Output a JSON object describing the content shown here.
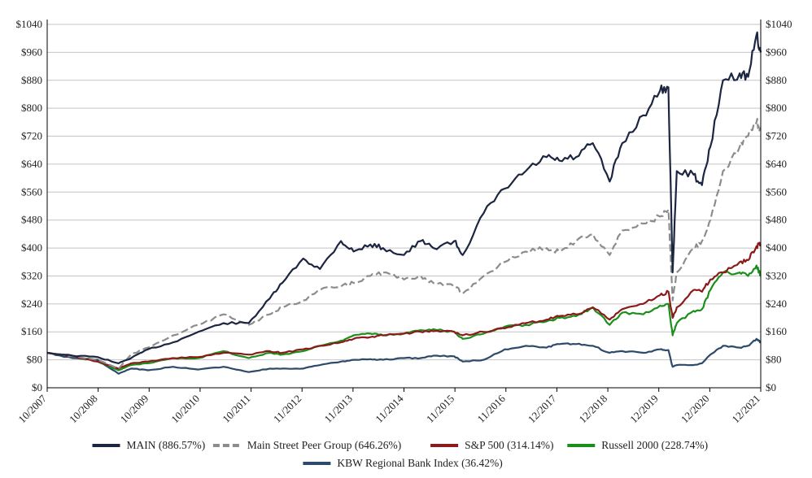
{
  "chart_data": {
    "type": "line",
    "y_axis": {
      "min": 0,
      "max": 1040,
      "step": 80,
      "prefix": "$",
      "right_axis_mirrored": true
    },
    "y_ticks": [
      "$0",
      "$80",
      "$160",
      "$240",
      "$320",
      "$400",
      "$480",
      "$560",
      "$640",
      "$720",
      "$800",
      "$880",
      "$960",
      "$1040"
    ],
    "x_ticks": [
      "10/2007",
      "10/2008",
      "10/2009",
      "10/2010",
      "10/2011",
      "11/2012",
      "11/2013",
      "11/2014",
      "11/2015",
      "11/2016",
      "12/2017",
      "12/2018",
      "12/2019",
      "12/2020",
      "12/2021"
    ],
    "x_range": [
      "2007-10",
      "2021-12"
    ],
    "grid": "horizontal",
    "legend_position": "bottom",
    "series": [
      {
        "name": "MAIN (886.57%)",
        "color": "#1c2541",
        "dash": "solid",
        "points": [
          [
            "2007-10",
            100
          ],
          [
            "2008-04",
            92
          ],
          [
            "2008-10",
            88
          ],
          [
            "2009-03",
            70
          ],
          [
            "2009-06",
            85
          ],
          [
            "2009-10",
            110
          ],
          [
            "2010-04",
            130
          ],
          [
            "2010-10",
            160
          ],
          [
            "2011-04",
            185
          ],
          [
            "2011-10",
            185
          ],
          [
            "2012-03",
            255
          ],
          [
            "2012-06",
            300
          ],
          [
            "2012-11",
            370
          ],
          [
            "2013-03",
            340
          ],
          [
            "2013-08",
            420
          ],
          [
            "2013-11",
            390
          ],
          [
            "2014-03",
            410
          ],
          [
            "2014-06",
            400
          ],
          [
            "2014-11",
            380
          ],
          [
            "2015-03",
            420
          ],
          [
            "2015-06",
            400
          ],
          [
            "2015-11",
            420
          ],
          [
            "2016-01",
            380
          ],
          [
            "2016-06",
            500
          ],
          [
            "2016-11",
            570
          ],
          [
            "2017-04",
            620
          ],
          [
            "2017-09",
            660
          ],
          [
            "2017-12",
            650
          ],
          [
            "2018-04",
            660
          ],
          [
            "2018-08",
            700
          ],
          [
            "2018-12",
            590
          ],
          [
            "2019-03",
            700
          ],
          [
            "2019-08",
            780
          ],
          [
            "2019-12",
            850
          ],
          [
            "2020-02",
            860
          ],
          [
            "2020-03",
            330
          ],
          [
            "2020-04",
            620
          ],
          [
            "2020-08",
            610
          ],
          [
            "2020-10",
            580
          ],
          [
            "2020-12",
            690
          ],
          [
            "2021-03",
            880
          ],
          [
            "2021-07",
            900
          ],
          [
            "2021-09",
            890
          ],
          [
            "2021-11",
            1010
          ],
          [
            "2021-12",
            960
          ]
        ]
      },
      {
        "name": "Main Street Peer Group (646.26%)",
        "color": "#8c8c8c",
        "dash": "dashed",
        "points": [
          [
            "2007-10",
            100
          ],
          [
            "2008-04",
            90
          ],
          [
            "2008-10",
            80
          ],
          [
            "2009-03",
            55
          ],
          [
            "2009-06",
            95
          ],
          [
            "2009-10",
            115
          ],
          [
            "2010-04",
            150
          ],
          [
            "2010-10",
            180
          ],
          [
            "2011-04",
            210
          ],
          [
            "2011-10",
            180
          ],
          [
            "2012-03",
            210
          ],
          [
            "2012-06",
            230
          ],
          [
            "2012-11",
            250
          ],
          [
            "2013-03",
            280
          ],
          [
            "2013-08",
            290
          ],
          [
            "2013-11",
            300
          ],
          [
            "2014-03",
            320
          ],
          [
            "2014-06",
            330
          ],
          [
            "2014-11",
            310
          ],
          [
            "2015-03",
            320
          ],
          [
            "2015-06",
            300
          ],
          [
            "2015-11",
            290
          ],
          [
            "2016-01",
            270
          ],
          [
            "2016-06",
            320
          ],
          [
            "2016-11",
            360
          ],
          [
            "2017-04",
            390
          ],
          [
            "2017-09",
            400
          ],
          [
            "2017-12",
            390
          ],
          [
            "2018-04",
            420
          ],
          [
            "2018-08",
            440
          ],
          [
            "2018-12",
            380
          ],
          [
            "2019-03",
            450
          ],
          [
            "2019-08",
            470
          ],
          [
            "2019-12",
            490
          ],
          [
            "2020-02",
            510
          ],
          [
            "2020-03",
            250
          ],
          [
            "2020-04",
            330
          ],
          [
            "2020-08",
            400
          ],
          [
            "2020-10",
            420
          ],
          [
            "2020-12",
            480
          ],
          [
            "2021-03",
            620
          ],
          [
            "2021-07",
            690
          ],
          [
            "2021-09",
            720
          ],
          [
            "2021-11",
            760
          ],
          [
            "2021-12",
            740
          ]
        ]
      },
      {
        "name": "S&P 500 (314.14%)",
        "color": "#8b1a1a",
        "dash": "solid",
        "points": [
          [
            "2007-10",
            100
          ],
          [
            "2008-04",
            90
          ],
          [
            "2008-10",
            75
          ],
          [
            "2009-03",
            55
          ],
          [
            "2009-06",
            70
          ],
          [
            "2009-10",
            75
          ],
          [
            "2010-04",
            85
          ],
          [
            "2010-10",
            88
          ],
          [
            "2011-04",
            100
          ],
          [
            "2011-10",
            95
          ],
          [
            "2012-03",
            105
          ],
          [
            "2012-06",
            100
          ],
          [
            "2012-11",
            110
          ],
          [
            "2013-03",
            120
          ],
          [
            "2013-08",
            130
          ],
          [
            "2013-11",
            140
          ],
          [
            "2014-03",
            145
          ],
          [
            "2014-06",
            150
          ],
          [
            "2014-11",
            155
          ],
          [
            "2015-03",
            160
          ],
          [
            "2015-06",
            162
          ],
          [
            "2015-11",
            160
          ],
          [
            "2016-01",
            150
          ],
          [
            "2016-06",
            160
          ],
          [
            "2016-11",
            170
          ],
          [
            "2017-04",
            185
          ],
          [
            "2017-09",
            195
          ],
          [
            "2017-12",
            205
          ],
          [
            "2018-04",
            210
          ],
          [
            "2018-08",
            230
          ],
          [
            "2018-12",
            195
          ],
          [
            "2019-03",
            225
          ],
          [
            "2019-08",
            240
          ],
          [
            "2019-12",
            265
          ],
          [
            "2020-02",
            275
          ],
          [
            "2020-03",
            200
          ],
          [
            "2020-04",
            230
          ],
          [
            "2020-08",
            280
          ],
          [
            "2020-10",
            275
          ],
          [
            "2020-12",
            310
          ],
          [
            "2021-03",
            330
          ],
          [
            "2021-07",
            360
          ],
          [
            "2021-09",
            365
          ],
          [
            "2021-11",
            405
          ],
          [
            "2021-12",
            410
          ]
        ]
      },
      {
        "name": "Russell 2000 (228.74%)",
        "color": "#1a8f1a",
        "dash": "solid",
        "points": [
          [
            "2007-10",
            100
          ],
          [
            "2008-04",
            90
          ],
          [
            "2008-10",
            75
          ],
          [
            "2009-03",
            50
          ],
          [
            "2009-06",
            65
          ],
          [
            "2009-10",
            70
          ],
          [
            "2010-04",
            85
          ],
          [
            "2010-10",
            85
          ],
          [
            "2011-04",
            105
          ],
          [
            "2011-10",
            85
          ],
          [
            "2012-03",
            100
          ],
          [
            "2012-06",
            95
          ],
          [
            "2012-11",
            105
          ],
          [
            "2013-03",
            120
          ],
          [
            "2013-08",
            135
          ],
          [
            "2013-11",
            150
          ],
          [
            "2014-03",
            155
          ],
          [
            "2014-06",
            150
          ],
          [
            "2014-11",
            155
          ],
          [
            "2015-03",
            165
          ],
          [
            "2015-06",
            168
          ],
          [
            "2015-11",
            160
          ],
          [
            "2016-01",
            140
          ],
          [
            "2016-06",
            155
          ],
          [
            "2016-11",
            175
          ],
          [
            "2017-04",
            180
          ],
          [
            "2017-09",
            190
          ],
          [
            "2017-12",
            200
          ],
          [
            "2018-04",
            205
          ],
          [
            "2018-08",
            230
          ],
          [
            "2018-12",
            180
          ],
          [
            "2019-03",
            215
          ],
          [
            "2019-08",
            210
          ],
          [
            "2019-12",
            235
          ],
          [
            "2020-02",
            240
          ],
          [
            "2020-03",
            150
          ],
          [
            "2020-04",
            185
          ],
          [
            "2020-08",
            220
          ],
          [
            "2020-10",
            225
          ],
          [
            "2020-12",
            280
          ],
          [
            "2021-03",
            330
          ],
          [
            "2021-07",
            330
          ],
          [
            "2021-09",
            320
          ],
          [
            "2021-11",
            350
          ],
          [
            "2021-12",
            320
          ]
        ]
      },
      {
        "name": "KBW Regional Bank Index (36.42%)",
        "color": "#2e4a6b",
        "dash": "solid",
        "points": [
          [
            "2007-10",
            100
          ],
          [
            "2008-04",
            85
          ],
          [
            "2008-10",
            80
          ],
          [
            "2009-03",
            40
          ],
          [
            "2009-06",
            55
          ],
          [
            "2009-10",
            50
          ],
          [
            "2010-04",
            60
          ],
          [
            "2010-10",
            52
          ],
          [
            "2011-04",
            60
          ],
          [
            "2011-10",
            45
          ],
          [
            "2012-03",
            55
          ],
          [
            "2012-06",
            55
          ],
          [
            "2012-11",
            55
          ],
          [
            "2013-03",
            65
          ],
          [
            "2013-08",
            75
          ],
          [
            "2013-11",
            80
          ],
          [
            "2014-03",
            82
          ],
          [
            "2014-06",
            80
          ],
          [
            "2014-11",
            85
          ],
          [
            "2015-03",
            85
          ],
          [
            "2015-06",
            92
          ],
          [
            "2015-11",
            90
          ],
          [
            "2016-01",
            75
          ],
          [
            "2016-06",
            80
          ],
          [
            "2016-11",
            110
          ],
          [
            "2017-04",
            120
          ],
          [
            "2017-09",
            115
          ],
          [
            "2017-12",
            125
          ],
          [
            "2018-04",
            125
          ],
          [
            "2018-08",
            120
          ],
          [
            "2018-12",
            100
          ],
          [
            "2019-03",
            105
          ],
          [
            "2019-08",
            100
          ],
          [
            "2019-12",
            110
          ],
          [
            "2020-02",
            108
          ],
          [
            "2020-03",
            60
          ],
          [
            "2020-04",
            65
          ],
          [
            "2020-08",
            65
          ],
          [
            "2020-10",
            70
          ],
          [
            "2020-12",
            95
          ],
          [
            "2021-03",
            120
          ],
          [
            "2021-07",
            115
          ],
          [
            "2021-09",
            120
          ],
          [
            "2021-11",
            140
          ],
          [
            "2021-12",
            130
          ]
        ]
      }
    ]
  }
}
